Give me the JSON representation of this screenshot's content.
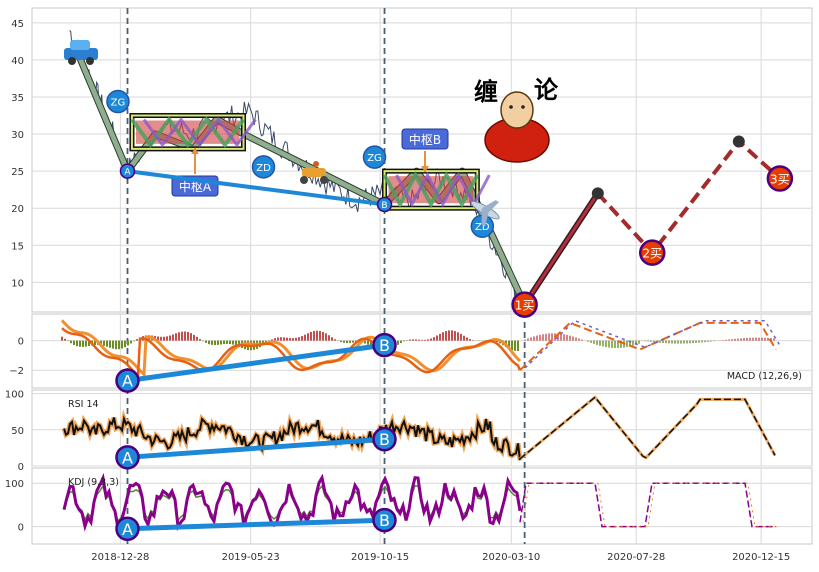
{
  "chart_data": [
    {
      "panel": "price",
      "type": "line",
      "ylim": [
        6,
        47
      ],
      "y_ticks": [
        "10",
        "15",
        "20",
        "25",
        "30",
        "35",
        "40",
        "45"
      ],
      "x": [
        "2018-11-01",
        "2018-11-20",
        "2018-12-10",
        "2019-01-05",
        "2019-02-10",
        "2019-03-20",
        "2019-04-20",
        "2019-05-23",
        "2019-06-20",
        "2019-07-20",
        "2019-08-20",
        "2019-09-20",
        "2019-10-15",
        "2019-11-20",
        "2019-12-20",
        "2020-01-20",
        "2020-02-20",
        "2020-03-20"
      ],
      "series": [
        {
          "values": [
            44,
            39,
            33,
            25,
            31,
            30,
            32,
            33,
            29,
            26,
            23,
            21,
            22,
            21,
            24,
            22,
            15,
            8
          ]
        }
      ],
      "bi_strokes": [
        {
          "points": [
            [
              "2018-11-10",
              41
            ],
            [
              "2019-01-05",
              25
            ],
            [
              "2019-02-05",
              30
            ],
            [
              "2019-03-20",
              28
            ],
            [
              "2019-04-15",
              32
            ],
            [
              "2019-05-15",
              30
            ],
            [
              "2019-10-20",
              20.5
            ],
            [
              "2019-11-25",
              25
            ],
            [
              "2019-12-20",
              21
            ],
            [
              "2020-01-15",
              25
            ],
            [
              "2020-03-25",
              7
            ]
          ]
        }
      ],
      "forecast": {
        "points": [
          [
            "2020-03-25",
            7
          ],
          [
            "2020-06-15",
            22
          ],
          [
            "2020-08-15",
            14
          ],
          [
            "2020-11-20",
            29
          ],
          [
            "2021-01-05",
            24
          ]
        ]
      },
      "zhongshu": [
        {
          "name": "中枢A",
          "x_range": [
            "2019-01-10",
            "2019-05-15"
          ],
          "zg": "ZG",
          "zd": "ZD"
        },
        {
          "name": "中枢B",
          "x_range": [
            "2019-10-20",
            "2020-02-01"
          ],
          "zg": "ZG",
          "zd": "ZD"
        }
      ],
      "markers": [
        {
          "label": "A",
          "x": "2019-01-05",
          "y": 25
        },
        {
          "label": "B",
          "x": "2019-10-20",
          "y": 20.5
        }
      ],
      "signals": [
        {
          "label": "1买",
          "x": "2020-03-25",
          "y": 7
        },
        {
          "label": "2买",
          "x": "2020-08-15",
          "y": 14
        },
        {
          "label": "3买",
          "x": "2021-01-05",
          "y": 24
        }
      ],
      "title_art": {
        "left": "缠",
        "right": "论"
      }
    },
    {
      "panel": "macd",
      "type": "line",
      "legend": "MACD (12,26,9)",
      "ylim": [
        -3.2,
        1.8
      ],
      "y_ticks": [
        "0",
        "−2"
      ],
      "markers": [
        {
          "label": "A",
          "x": "2019-01-05",
          "y": -2.7
        },
        {
          "label": "B",
          "x": "2019-10-20",
          "y": -0.3
        }
      ]
    },
    {
      "panel": "rsi",
      "type": "line",
      "legend": "RSI 14",
      "ylim": [
        0,
        105
      ],
      "y_ticks": [
        "0",
        "50",
        "100"
      ],
      "markers": [
        {
          "label": "A",
          "x": "2019-01-05",
          "y": 12
        },
        {
          "label": "B",
          "x": "2019-10-20",
          "y": 37
        }
      ]
    },
    {
      "panel": "kdj",
      "type": "line",
      "legend": "KDJ (9,3,3)",
      "ylim": [
        -40,
        135
      ],
      "y_ticks": [
        "0",
        "100"
      ],
      "markers": [
        {
          "label": "A",
          "x": "2019-01-05",
          "y": -5
        },
        {
          "label": "B",
          "x": "2019-10-20",
          "y": 15
        }
      ]
    }
  ],
  "x_axis": {
    "ticks": [
      "2018-12-28",
      "2019-05-23",
      "2019-10-15",
      "2020-03-10",
      "2020-07-28",
      "2020-12-15"
    ]
  },
  "colors": {
    "grid": "#d9d9d9",
    "price_line": "#3b4a66",
    "bi_stroke": "#8fae8f",
    "marker_fill": "#1e88d8",
    "marker_edge": "#4b0082",
    "signal_fill": "#e63c00",
    "forecast": "#a52a2a",
    "trend_blue": "#1e88d8",
    "macd_dif": "#e86010",
    "macd_dea": "#f09030",
    "macd_bar_pos": "#c05050",
    "macd_bar_neg": "#6b8e23",
    "rsi": "#111111",
    "kdj": "#8b008b",
    "vline": "#4a6070"
  }
}
